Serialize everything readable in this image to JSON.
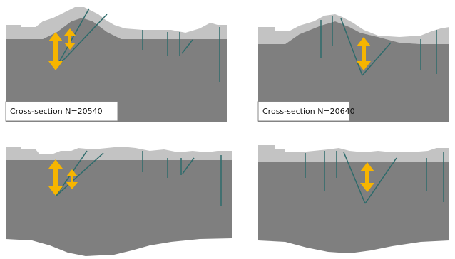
{
  "panels": [
    {
      "label": "Cross-section N=20540"
    },
    {
      "label": "Cross-section N=20640"
    }
  ]
}
